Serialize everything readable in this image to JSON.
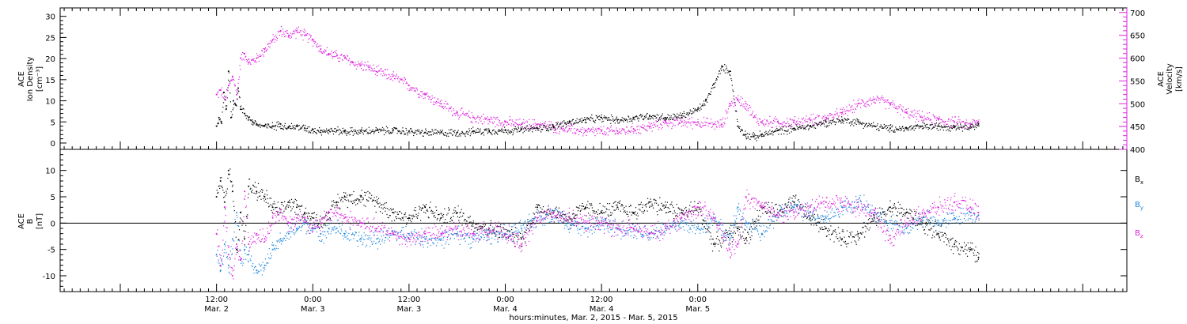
{
  "chart_data": [
    {
      "type": "scatter",
      "panel": "top",
      "ylabel_left": [
        "ACE",
        "Ion Density",
        "[cm⁻³]"
      ],
      "ylabel_right": [
        "ACE",
        "Velocity",
        "[km/s]"
      ],
      "ylim_left": [
        -1.5,
        32
      ],
      "ylim_right": [
        400,
        710
      ],
      "yticks_left": [
        0,
        5,
        10,
        15,
        20,
        25,
        30
      ],
      "yticks_right": [
        400,
        450,
        500,
        550,
        600,
        650,
        700
      ],
      "colors": {
        "density": "#000000",
        "velocity": "#e020e0"
      },
      "series": [
        {
          "axis": "left",
          "color": "#000000",
          "x": [
            0,
            0.3,
            0.6,
            0.9,
            1.2,
            1.5,
            1.8,
            2.1,
            2.4,
            2.7,
            3,
            3.5,
            4,
            4.5,
            5,
            6,
            7,
            8,
            9,
            10,
            11,
            12,
            13,
            14,
            15,
            16,
            18,
            20,
            22,
            24,
            26,
            28,
            30,
            32,
            34,
            36,
            38,
            40,
            42,
            44,
            46,
            48,
            50,
            52,
            54,
            56,
            58,
            60,
            61,
            62,
            63,
            64,
            65,
            66,
            67,
            68,
            70,
            72,
            74,
            76,
            78,
            80,
            82,
            84,
            86,
            88,
            90,
            92,
            94,
            95
          ],
          "y": [
            4,
            6,
            5,
            12,
            8,
            17,
            6,
            10,
            9,
            13,
            8,
            7,
            6,
            5,
            4.5,
            4,
            4,
            4.5,
            3.8,
            4,
            3.5,
            3.2,
            3,
            3,
            3,
            2.8,
            2.8,
            3,
            3,
            2.8,
            2.5,
            2.5,
            2.5,
            2.8,
            3,
            3,
            3.2,
            3.5,
            4,
            5,
            5.5,
            6,
            5.5,
            6,
            6.5,
            6,
            6.5,
            8,
            10,
            14,
            18,
            17,
            4,
            2,
            1.5,
            2,
            3,
            3.5,
            4,
            5,
            5.5,
            5,
            4,
            3.5,
            3.5,
            4,
            4,
            4,
            4,
            4.5
          ]
        },
        {
          "axis": "right",
          "color": "#e020e0",
          "x": [
            0,
            0.5,
            1,
            1.5,
            2,
            2.5,
            3,
            3.5,
            4,
            5,
            6,
            7,
            8,
            9,
            10,
            11,
            12,
            13,
            14,
            15,
            16,
            17,
            18,
            19,
            20,
            22,
            24,
            26,
            28,
            30,
            32,
            34,
            36,
            38,
            40,
            42,
            44,
            46,
            48,
            50,
            52,
            54,
            56,
            58,
            60,
            62,
            63,
            64,
            65,
            66,
            67,
            68,
            70,
            72,
            74,
            76,
            78,
            80,
            82,
            84,
            86,
            88,
            90,
            92,
            94,
            95
          ],
          "y": [
            520,
            530,
            510,
            540,
            560,
            520,
            600,
            610,
            590,
            600,
            620,
            640,
            660,
            650,
            660,
            650,
            640,
            620,
            610,
            605,
            600,
            590,
            585,
            580,
            570,
            560,
            540,
            520,
            500,
            480,
            470,
            465,
            460,
            455,
            455,
            450,
            445,
            440,
            440,
            440,
            445,
            450,
            460,
            460,
            460,
            455,
            455,
            500,
            510,
            500,
            470,
            460,
            460,
            460,
            465,
            470,
            480,
            500,
            510,
            500,
            480,
            470,
            465,
            460,
            455,
            460
          ]
        }
      ]
    },
    {
      "type": "scatter",
      "panel": "bottom",
      "ylabel": [
        "ACE",
        "B",
        "[nT]"
      ],
      "ylim": [
        -13,
        14
      ],
      "yticks": [
        -10,
        -5,
        0,
        5,
        10
      ],
      "zero_line": true,
      "legend_position": "right",
      "series": [
        {
          "name": "Bx",
          "label_main": "B",
          "label_sub": "x",
          "color": "#000000",
          "x": [
            0,
            0.5,
            1,
            1.5,
            2,
            2.5,
            3,
            3.5,
            4,
            5,
            6,
            7,
            8,
            9,
            10,
            11,
            12,
            13,
            14,
            15,
            16,
            18,
            20,
            22,
            24,
            26,
            28,
            30,
            32,
            34,
            36,
            38,
            40,
            42,
            44,
            46,
            48,
            50,
            52,
            54,
            56,
            58,
            60,
            62,
            64,
            65,
            66,
            68,
            70,
            72,
            74,
            76,
            78,
            80,
            82,
            84,
            86,
            88,
            90,
            92,
            94,
            95
          ],
          "y": [
            5,
            8,
            4,
            10,
            6,
            -5,
            2,
            -3,
            7,
            6,
            5,
            3,
            2,
            4,
            3,
            2,
            1,
            0,
            2,
            4,
            5,
            5,
            4,
            2,
            1,
            3,
            1,
            2,
            0,
            -1,
            -2,
            -3,
            3,
            2,
            1,
            3,
            2,
            3,
            2,
            4,
            3,
            2,
            3,
            -4,
            -2,
            -1,
            -3,
            3,
            2,
            4,
            1,
            -1,
            -3,
            -2,
            1,
            3,
            2,
            0,
            -2,
            -4,
            -5,
            -6.5
          ]
        },
        {
          "name": "By",
          "label_main": "B",
          "label_sub": "y",
          "color": "#1e86dc",
          "x": [
            0,
            0.5,
            1,
            1.5,
            2,
            2.5,
            3,
            3.5,
            4,
            5,
            6,
            7,
            8,
            9,
            10,
            11,
            12,
            13,
            14,
            15,
            16,
            18,
            20,
            22,
            24,
            26,
            28,
            30,
            32,
            34,
            36,
            38,
            40,
            42,
            44,
            46,
            48,
            50,
            52,
            54,
            56,
            58,
            60,
            62,
            64,
            65,
            66,
            68,
            70,
            72,
            74,
            76,
            78,
            80,
            82,
            84,
            86,
            88,
            90,
            92,
            94,
            95
          ],
          "y": [
            -6,
            -9,
            -4,
            -8,
            -3,
            2,
            -7,
            -5,
            -6,
            -9,
            -8,
            -5,
            -3,
            -2,
            -1,
            0,
            -1,
            -2,
            -1,
            -1,
            -2,
            -3,
            -3,
            -2,
            -2,
            -3,
            -3,
            -2,
            -3,
            -2,
            -2,
            -1,
            1,
            2,
            0,
            -1,
            0,
            -1,
            -1,
            -2,
            -1,
            0,
            -1,
            1,
            -3,
            3,
            0,
            -2,
            2,
            3,
            2,
            1,
            3,
            4,
            2,
            0,
            -1,
            1,
            0,
            1,
            2,
            1.5
          ]
        },
        {
          "name": "Bz",
          "label_main": "B",
          "label_sub": "z",
          "color": "#e020e0",
          "x": [
            0,
            0.5,
            1,
            1.5,
            2,
            2.5,
            3,
            3.5,
            4,
            5,
            6,
            7,
            8,
            9,
            10,
            11,
            12,
            13,
            14,
            15,
            16,
            18,
            20,
            22,
            24,
            26,
            28,
            30,
            32,
            34,
            36,
            38,
            40,
            42,
            44,
            46,
            48,
            50,
            52,
            54,
            56,
            58,
            60,
            62,
            64,
            65,
            66,
            68,
            70,
            72,
            74,
            76,
            78,
            80,
            82,
            84,
            86,
            88,
            90,
            92,
            94,
            95
          ],
          "y": [
            -2,
            -8,
            3,
            -6,
            -10,
            -4,
            -7,
            6,
            -4,
            -2,
            -3,
            1,
            2,
            0,
            1,
            1,
            -1,
            0,
            2,
            2,
            1,
            0,
            -1,
            -2,
            -3,
            -2,
            -2,
            -1,
            -2,
            -1,
            -2,
            -4,
            1,
            2,
            1,
            0,
            0,
            -1,
            -1,
            -2,
            -1,
            1,
            3,
            1,
            -5,
            -4,
            5,
            3,
            2,
            2,
            3,
            4,
            4,
            3,
            2,
            -3,
            0,
            2,
            3,
            4,
            3,
            2
          ]
        }
      ]
    }
  ],
  "x_axis": {
    "range_hours": [
      -19.5,
      113.5
    ],
    "ticks": [
      {
        "hour": 0,
        "time": "12:00",
        "date": "Mar. 2"
      },
      {
        "hour": 12,
        "time": "0:00",
        "date": "Mar. 3"
      },
      {
        "hour": 24,
        "time": "12:00",
        "date": "Mar. 3"
      },
      {
        "hour": 36,
        "time": "0:00",
        "date": "Mar. 4"
      },
      {
        "hour": 48,
        "time": "12:00",
        "date": "Mar. 4"
      },
      {
        "hour": 60,
        "time": "0:00",
        "date": "Mar. 5"
      }
    ],
    "label": "hours:minutes, Mar.  2, 2015 - Mar.  5, 2015"
  }
}
